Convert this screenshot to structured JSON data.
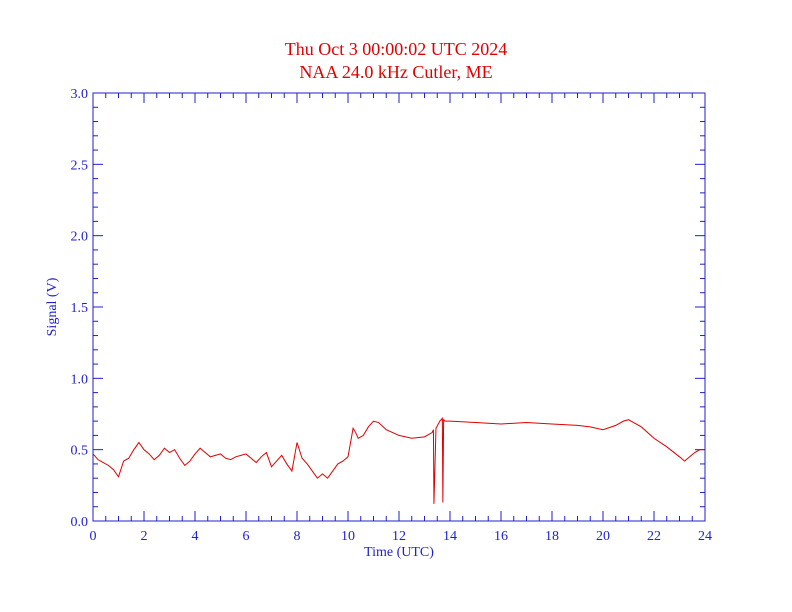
{
  "chart_data": {
    "type": "line",
    "title": "Thu Oct 3 00:00:02 UTC 2024",
    "subtitle": "NAA 24.0 kHz Cutler, ME",
    "xlabel": "Time (UTC)",
    "ylabel": "Signal (V)",
    "xlim": [
      0,
      24
    ],
    "ylim": [
      0,
      3.0
    ],
    "xticks": [
      "0",
      "2",
      "4",
      "6",
      "8",
      "10",
      "12",
      "14",
      "16",
      "18",
      "20",
      "22",
      "24"
    ],
    "yticks": [
      "0.0",
      "0.5",
      "1.0",
      "1.5",
      "2.0",
      "2.5",
      "3.0"
    ],
    "grid": false,
    "colors": {
      "title": "#e00000",
      "axes": "#1f1fd0",
      "line": "#e00000"
    },
    "series": [
      {
        "x": [
          0,
          0.2,
          0.4,
          0.6,
          0.8,
          1.0,
          1.2,
          1.4,
          1.6,
          1.8,
          2.0,
          2.2,
          2.4,
          2.6,
          2.8,
          3.0,
          3.2,
          3.4,
          3.6,
          3.8,
          4.0,
          4.2,
          4.4,
          4.6,
          4.8,
          5.0,
          5.2,
          5.4,
          5.6,
          5.8,
          6.0,
          6.2,
          6.4,
          6.6,
          6.8,
          7.0,
          7.2,
          7.4,
          7.6,
          7.8,
          8.0,
          8.2,
          8.4,
          8.6,
          8.8,
          9.0,
          9.2,
          9.4,
          9.6,
          9.8,
          10.0,
          10.1,
          10.2,
          10.3,
          10.4,
          10.6,
          10.8,
          11.0,
          11.2,
          11.5,
          12.0,
          12.5,
          13.0,
          13.3,
          13.35,
          13.37,
          13.45,
          13.6,
          13.7,
          13.72,
          13.75,
          13.8,
          14.0,
          15.0,
          16.0,
          17.0,
          18.0,
          19.0,
          19.5,
          20.0,
          20.5,
          20.8,
          21.0,
          21.5,
          22.0,
          22.5,
          23.0,
          23.2,
          23.4,
          23.6,
          23.8,
          24.0
        ],
        "values": [
          0.47,
          0.43,
          0.41,
          0.39,
          0.36,
          0.31,
          0.42,
          0.44,
          0.5,
          0.55,
          0.5,
          0.47,
          0.43,
          0.46,
          0.51,
          0.48,
          0.5,
          0.44,
          0.39,
          0.42,
          0.47,
          0.51,
          0.48,
          0.45,
          0.46,
          0.47,
          0.44,
          0.43,
          0.45,
          0.46,
          0.47,
          0.44,
          0.41,
          0.45,
          0.48,
          0.38,
          0.42,
          0.46,
          0.4,
          0.35,
          0.55,
          0.44,
          0.4,
          0.35,
          0.3,
          0.33,
          0.3,
          0.35,
          0.4,
          0.42,
          0.45,
          0.55,
          0.65,
          0.62,
          0.58,
          0.6,
          0.66,
          0.7,
          0.69,
          0.64,
          0.6,
          0.58,
          0.59,
          0.62,
          0.64,
          0.12,
          0.65,
          0.7,
          0.72,
          0.13,
          0.71,
          0.7,
          0.7,
          0.69,
          0.68,
          0.69,
          0.68,
          0.67,
          0.66,
          0.64,
          0.67,
          0.7,
          0.71,
          0.66,
          0.58,
          0.52,
          0.45,
          0.42,
          0.45,
          0.48,
          0.5,
          0.5
        ]
      }
    ]
  }
}
